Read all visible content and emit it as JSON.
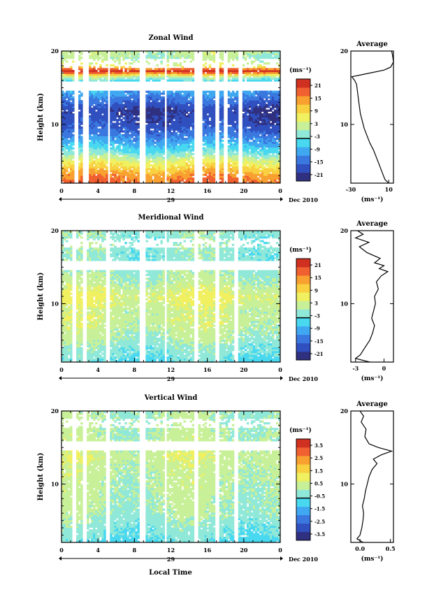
{
  "figure": {
    "bottom_xlabel": "Local Time",
    "date_label": "Dec 2010",
    "day_label": "29",
    "x_ticks": [
      "0",
      "4",
      "8",
      "12",
      "16",
      "20",
      "0"
    ]
  },
  "colors": {
    "ramp": [
      "#303080",
      "#3050c0",
      "#3a78e0",
      "#40a8f0",
      "#48d8f0",
      "#90e8d8",
      "#c8f098",
      "#f0f060",
      "#f8d040",
      "#f8a030",
      "#f06030",
      "#d03020"
    ]
  },
  "chart_data": [
    {
      "type": "heatmap",
      "title": "Zonal Wind",
      "ylabel": "Height (km)",
      "ylim": [
        2,
        20
      ],
      "y_ticks": [
        "10",
        "20"
      ],
      "x_range_hours": [
        0,
        24
      ],
      "colorbar": {
        "unit": "(ms⁻¹)",
        "ticks": [
          "21",
          "15",
          "9",
          "3",
          "-3",
          "-9",
          "-15",
          "-21"
        ],
        "range": [
          -24,
          24
        ]
      },
      "gap_hours": [
        [
          1.3,
          1.8
        ],
        [
          2.4,
          3.0
        ],
        [
          5.0,
          5.4
        ],
        [
          8.6,
          9.3
        ],
        [
          11.3,
          11.6
        ],
        [
          14.6,
          15.4
        ],
        [
          16.8,
          17.2
        ],
        [
          17.7,
          18.2
        ],
        [
          19.3,
          19.8
        ]
      ],
      "profile": [
        {
          "z": 2,
          "v": 18
        },
        {
          "z": 3,
          "v": 15
        },
        {
          "z": 4,
          "v": 10
        },
        {
          "z": 5,
          "v": 5
        },
        {
          "z": 6,
          "v": -2
        },
        {
          "z": 7,
          "v": -7
        },
        {
          "z": 8,
          "v": -11
        },
        {
          "z": 9,
          "v": -15
        },
        {
          "z": 10,
          "v": -18
        },
        {
          "z": 11,
          "v": -19
        },
        {
          "z": 12,
          "v": -20
        },
        {
          "z": 13,
          "v": -16
        },
        {
          "z": 14,
          "v": -12
        },
        {
          "z": 15,
          "v": -8
        },
        {
          "z": 16,
          "v": -5
        },
        {
          "z": 16.6,
          "v": 3
        },
        {
          "z": 17.3,
          "v": 24
        },
        {
          "z": 18,
          "v": 5
        },
        {
          "z": 19,
          "v": 0
        },
        {
          "z": 20,
          "v": 2
        }
      ],
      "average_profile": {
        "title": "Average",
        "xlabel": "(ms⁻¹)",
        "xlim": [
          -30,
          15
        ],
        "x_ticks": [
          "-30",
          "10"
        ],
        "y_ticks": [
          "10",
          "20"
        ],
        "points": [
          {
            "z": 2,
            "v": 10
          },
          {
            "z": 2.5,
            "v": 6
          },
          {
            "z": 3.5,
            "v": 3
          },
          {
            "z": 4.5,
            "v": 0
          },
          {
            "z": 5.5,
            "v": -3
          },
          {
            "z": 6.5,
            "v": -6
          },
          {
            "z": 7.5,
            "v": -10
          },
          {
            "z": 8.5,
            "v": -13
          },
          {
            "z": 9.5,
            "v": -16
          },
          {
            "z": 10.5,
            "v": -18
          },
          {
            "z": 11.5,
            "v": -20
          },
          {
            "z": 12.5,
            "v": -21
          },
          {
            "z": 13.5,
            "v": -22
          },
          {
            "z": 14.5,
            "v": -23
          },
          {
            "z": 15.5,
            "v": -24
          },
          {
            "z": 16,
            "v": -26
          },
          {
            "z": 16.5,
            "v": -29
          },
          {
            "z": 17,
            "v": -10
          },
          {
            "z": 17.4,
            "v": 5
          },
          {
            "z": 17.8,
            "v": 12
          },
          {
            "z": 18.5,
            "v": 15
          },
          {
            "z": 19.5,
            "v": 14
          },
          {
            "z": 20,
            "v": 13
          }
        ]
      }
    },
    {
      "type": "heatmap",
      "title": "Meridional Wind",
      "ylabel": "Height (km)",
      "ylim": [
        2,
        20
      ],
      "y_ticks": [
        "10",
        "20"
      ],
      "x_range_hours": [
        0,
        24
      ],
      "colorbar": {
        "unit": "(ms⁻¹)",
        "ticks": [
          "21",
          "15",
          "9",
          "3",
          "-3",
          "-9",
          "-15",
          "-21"
        ],
        "range": [
          -24,
          24
        ]
      },
      "gap_hours": [
        [
          1.2,
          1.7
        ],
        [
          2.3,
          2.8
        ],
        [
          4.9,
          5.3
        ],
        [
          8.5,
          9.2
        ],
        [
          11.2,
          11.6
        ],
        [
          14.5,
          15.0
        ],
        [
          16.9,
          17.3
        ],
        [
          19.0,
          19.4
        ]
      ],
      "profile": [
        {
          "z": 2,
          "v": -5
        },
        {
          "z": 3,
          "v": -3
        },
        {
          "z": 4,
          "v": -2
        },
        {
          "z": 5,
          "v": 0
        },
        {
          "z": 6,
          "v": 1
        },
        {
          "z": 7,
          "v": 2
        },
        {
          "z": 8,
          "v": 3
        },
        {
          "z": 9,
          "v": 2
        },
        {
          "z": 10,
          "v": 4
        },
        {
          "z": 11,
          "v": 5
        },
        {
          "z": 12,
          "v": 3
        },
        {
          "z": 13,
          "v": 1
        },
        {
          "z": 14,
          "v": 0
        },
        {
          "z": 15,
          "v": -1
        },
        {
          "z": 16,
          "v": -2
        },
        {
          "z": 17,
          "v": -2
        },
        {
          "z": 18,
          "v": -1
        },
        {
          "z": 19,
          "v": -2
        },
        {
          "z": 20,
          "v": -1
        }
      ],
      "average_profile": {
        "title": "Average",
        "xlabel": "(ms⁻¹)",
        "xlim": [
          -3.5,
          1
        ],
        "x_ticks": [
          "-3",
          "0"
        ],
        "y_ticks": [
          "10",
          "20"
        ],
        "points": [
          {
            "z": 2,
            "v": -1.5
          },
          {
            "z": 2.5,
            "v": -3.0
          },
          {
            "z": 3,
            "v": -2.5
          },
          {
            "z": 4,
            "v": -2.0
          },
          {
            "z": 5,
            "v": -1.5
          },
          {
            "z": 6,
            "v": -1.2
          },
          {
            "z": 7,
            "v": -1.0
          },
          {
            "z": 8,
            "v": -1.3
          },
          {
            "z": 9,
            "v": -1.1
          },
          {
            "z": 10,
            "v": -0.9
          },
          {
            "z": 11,
            "v": -1.0
          },
          {
            "z": 12,
            "v": -0.6
          },
          {
            "z": 13,
            "v": -0.8
          },
          {
            "z": 13.8,
            "v": -0.3
          },
          {
            "z": 14.4,
            "v": 0.4
          },
          {
            "z": 14.8,
            "v": -0.5
          },
          {
            "z": 15.2,
            "v": 0.0
          },
          {
            "z": 15.6,
            "v": -1.0
          },
          {
            "z": 16.2,
            "v": -0.4
          },
          {
            "z": 17,
            "v": -1.8
          },
          {
            "z": 17.8,
            "v": -2.6
          },
          {
            "z": 18.4,
            "v": -1.6
          },
          {
            "z": 19,
            "v": -3.0
          },
          {
            "z": 19.5,
            "v": -2.2
          },
          {
            "z": 20,
            "v": -2.8
          }
        ]
      }
    },
    {
      "type": "heatmap",
      "title": "Vertical Wind",
      "ylabel": "Height (km)",
      "ylim": [
        2,
        20
      ],
      "y_ticks": [
        "10",
        "20"
      ],
      "x_range_hours": [
        0,
        24
      ],
      "colorbar": {
        "unit": "(ms⁻¹)",
        "ticks": [
          "3.5",
          "2.5",
          "1.5",
          "0.5",
          "-0.5",
          "-1.5",
          "-2.5",
          "-3.5"
        ],
        "range": [
          -4,
          4
        ]
      },
      "gap_hours": [
        [
          1.2,
          1.7
        ],
        [
          2.3,
          2.8
        ],
        [
          4.9,
          5.3
        ],
        [
          8.5,
          9.2
        ],
        [
          11.2,
          11.6
        ],
        [
          14.5,
          15.0
        ],
        [
          16.8,
          17.2
        ],
        [
          19.0,
          19.4
        ]
      ],
      "profile": [
        {
          "z": 2,
          "v": -0.8
        },
        {
          "z": 4,
          "v": -0.4
        },
        {
          "z": 6,
          "v": 0.0
        },
        {
          "z": 8,
          "v": 0.1
        },
        {
          "z": 10,
          "v": 0.2
        },
        {
          "z": 12,
          "v": 0.3
        },
        {
          "z": 14,
          "v": 0.5
        },
        {
          "z": 16,
          "v": 0.2
        },
        {
          "z": 18,
          "v": 0.1
        },
        {
          "z": 20,
          "v": 0.0
        }
      ],
      "average_profile": {
        "title": "Average",
        "xlabel": "(ms⁻¹)",
        "xlim": [
          -0.15,
          0.55
        ],
        "x_ticks": [
          "0.0",
          "0.5"
        ],
        "y_ticks": [
          "10",
          "20"
        ],
        "points": [
          {
            "z": 2,
            "v": 0.05
          },
          {
            "z": 2.5,
            "v": -0.05
          },
          {
            "z": 3,
            "v": 0.0
          },
          {
            "z": 4,
            "v": 0.03
          },
          {
            "z": 5,
            "v": 0.05
          },
          {
            "z": 6,
            "v": 0.06
          },
          {
            "z": 7,
            "v": 0.04
          },
          {
            "z": 8,
            "v": 0.07
          },
          {
            "z": 9,
            "v": 0.09
          },
          {
            "z": 10,
            "v": 0.12
          },
          {
            "z": 11,
            "v": 0.15
          },
          {
            "z": 12,
            "v": 0.2
          },
          {
            "z": 12.8,
            "v": 0.28
          },
          {
            "z": 13.4,
            "v": 0.22
          },
          {
            "z": 14,
            "v": 0.35
          },
          {
            "z": 14.5,
            "v": 0.52
          },
          {
            "z": 15,
            "v": 0.3
          },
          {
            "z": 15.5,
            "v": 0.15
          },
          {
            "z": 16.5,
            "v": 0.08
          },
          {
            "z": 17.5,
            "v": 0.1
          },
          {
            "z": 18.5,
            "v": 0.02
          },
          {
            "z": 19.3,
            "v": 0.06
          },
          {
            "z": 20,
            "v": 0.0
          }
        ]
      }
    }
  ]
}
